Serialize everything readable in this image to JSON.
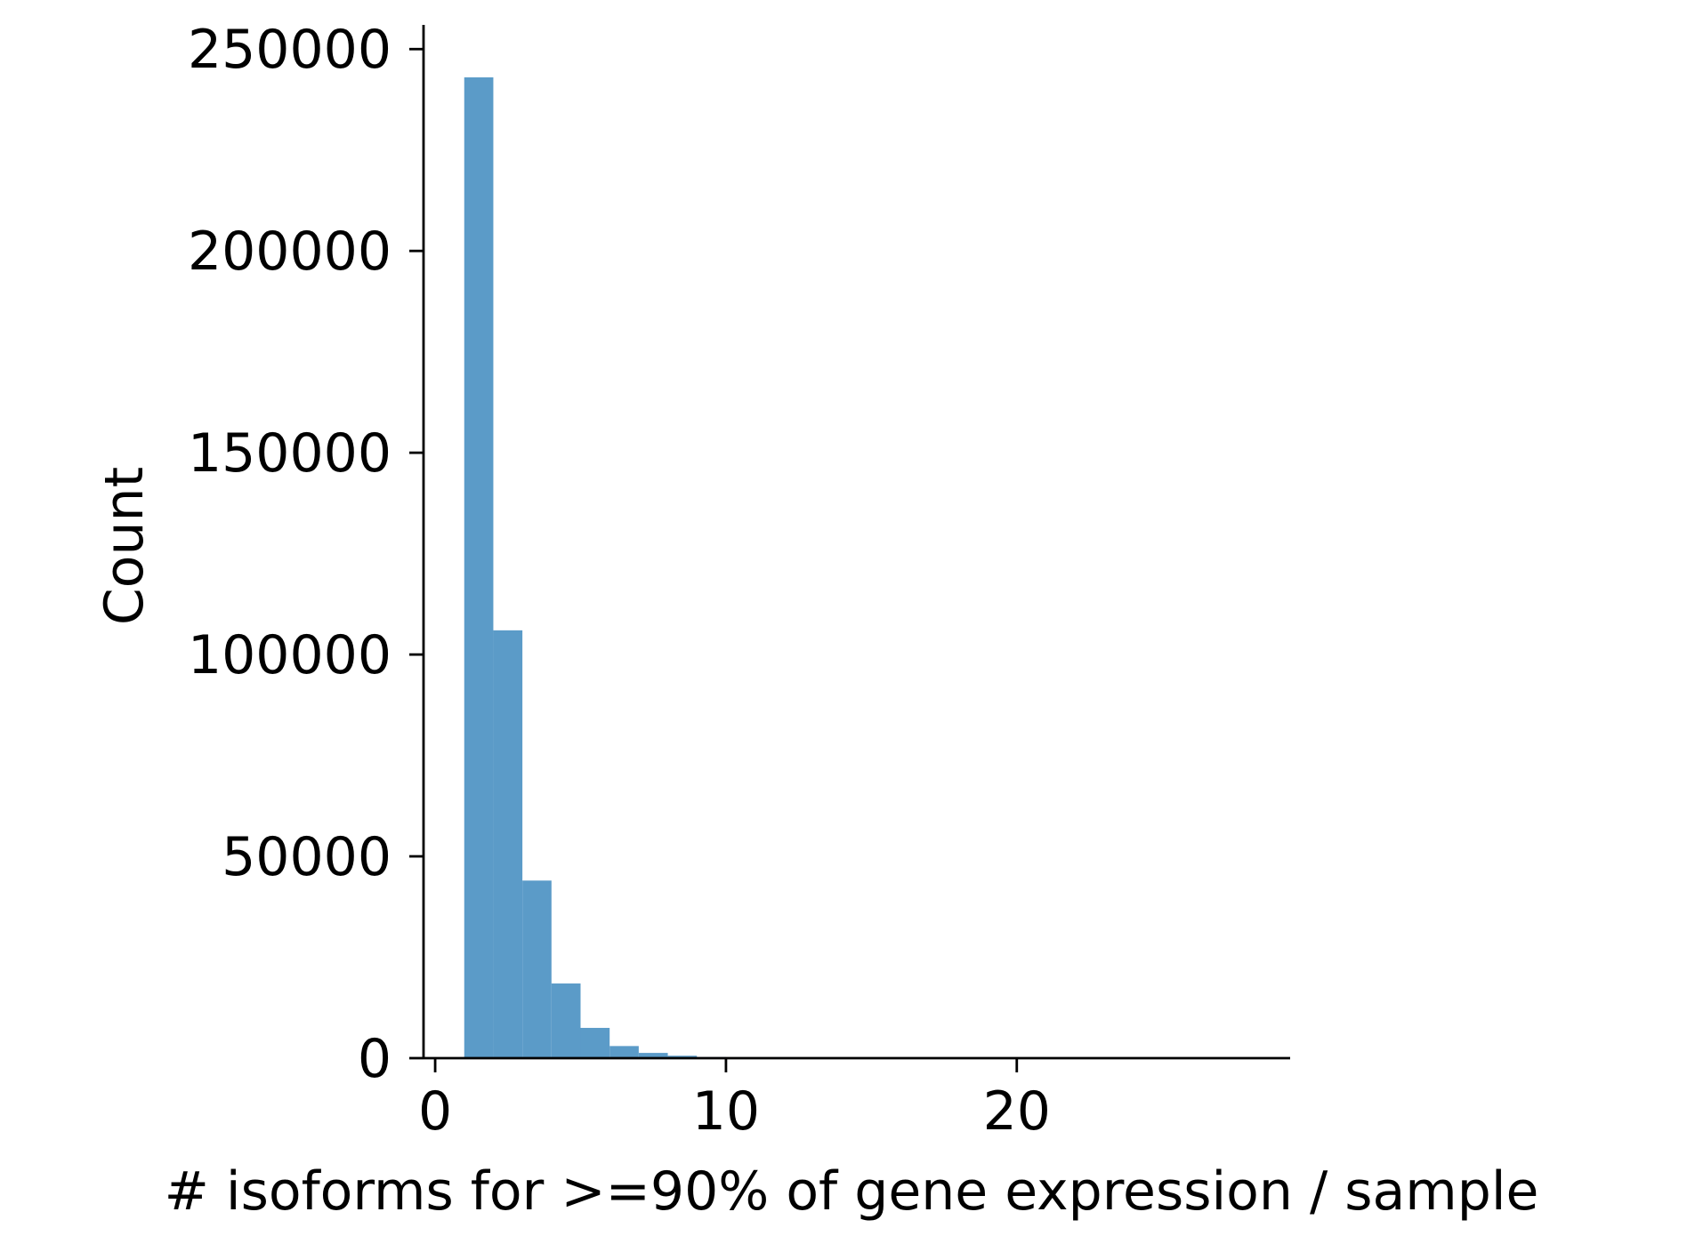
{
  "chart_data": {
    "type": "bar",
    "subtype": "histogram",
    "title": "",
    "xlabel": "# isoforms for >=90% of gene expression / sample",
    "ylabel": "Count",
    "xlim": [
      -0.4,
      29.4
    ],
    "ylim": [
      0,
      256000
    ],
    "xticks": [
      0,
      10,
      20
    ],
    "xtick_labels": [
      "0",
      "10",
      "20"
    ],
    "yticks": [
      0,
      50000,
      100000,
      150000,
      200000,
      250000
    ],
    "ytick_labels": [
      "0",
      "50000",
      "100000",
      "150000",
      "200000",
      "250000"
    ],
    "bin_width": 1,
    "bins": [
      {
        "x0": 1,
        "x1": 2,
        "value": 243000
      },
      {
        "x0": 2,
        "x1": 3,
        "value": 106000
      },
      {
        "x0": 3,
        "x1": 4,
        "value": 44000
      },
      {
        "x0": 4,
        "x1": 5,
        "value": 18500
      },
      {
        "x0": 5,
        "x1": 6,
        "value": 7500
      },
      {
        "x0": 6,
        "x1": 7,
        "value": 3000
      },
      {
        "x0": 7,
        "x1": 8,
        "value": 1300
      },
      {
        "x0": 8,
        "x1": 9,
        "value": 600
      },
      {
        "x0": 9,
        "x1": 10,
        "value": 250
      },
      {
        "x0": 10,
        "x1": 11,
        "value": 120
      },
      {
        "x0": 11,
        "x1": 12,
        "value": 60
      },
      {
        "x0": 12,
        "x1": 13,
        "value": 30
      },
      {
        "x0": 13,
        "x1": 14,
        "value": 15
      },
      {
        "x0": 14,
        "x1": 15,
        "value": 8
      }
    ],
    "bar_color": "#5b9bc8",
    "grid": false,
    "spines": [
      "left",
      "bottom"
    ]
  }
}
